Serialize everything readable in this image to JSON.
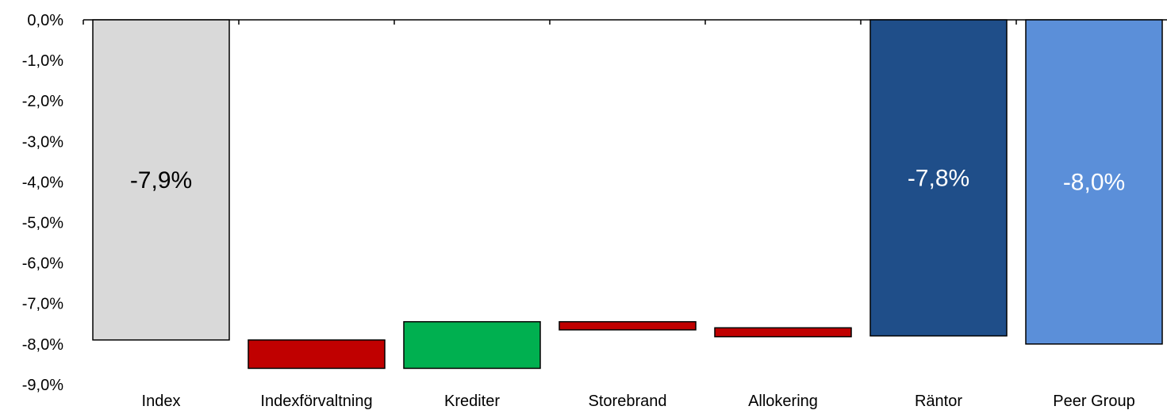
{
  "chart_data": {
    "type": "waterfall",
    "title": "",
    "xlabel": "",
    "ylabel": "",
    "ylim": [
      -9.0,
      0.0
    ],
    "y_ticks": [
      "0,0%",
      "-1,0%",
      "-2,0%",
      "-3,0%",
      "-4,0%",
      "-5,0%",
      "-6,0%",
      "-7,0%",
      "-8,0%",
      "-9,0%"
    ],
    "y_tick_values": [
      0,
      -1,
      -2,
      -3,
      -4,
      -5,
      -6,
      -7,
      -8,
      -9
    ],
    "grid": false,
    "legend": "none",
    "categories": [
      "Index",
      "Indexförvaltning",
      "Krediter",
      "Storebrand",
      "Allokering",
      "Räntor",
      "Peer Group"
    ],
    "bars": [
      {
        "category": "Index",
        "kind": "total",
        "start": 0.0,
        "end": -7.9,
        "label": "-7,9%",
        "color": "#d9d9d9",
        "label_color": "#000000"
      },
      {
        "category": "Indexförvaltning",
        "kind": "decrease",
        "start": -7.9,
        "end": -8.6,
        "color": "#c00000"
      },
      {
        "category": "Krediter",
        "kind": "increase",
        "start": -8.6,
        "end": -7.45,
        "color": "#00b050"
      },
      {
        "category": "Storebrand",
        "kind": "decrease",
        "start": -7.45,
        "end": -7.65,
        "color": "#c00000"
      },
      {
        "category": "Allokering",
        "kind": "decrease",
        "start": -7.6,
        "end": -7.82,
        "color": "#c00000"
      },
      {
        "category": "Räntor",
        "kind": "total",
        "start": 0.0,
        "end": -7.8,
        "label": "-7,8%",
        "color": "#1f4e89",
        "label_color": "#ffffff"
      },
      {
        "category": "Peer Group",
        "kind": "total",
        "start": 0.0,
        "end": -8.0,
        "label": "-8,0%",
        "color": "#5b8fd9",
        "label_color": "#ffffff"
      }
    ]
  }
}
